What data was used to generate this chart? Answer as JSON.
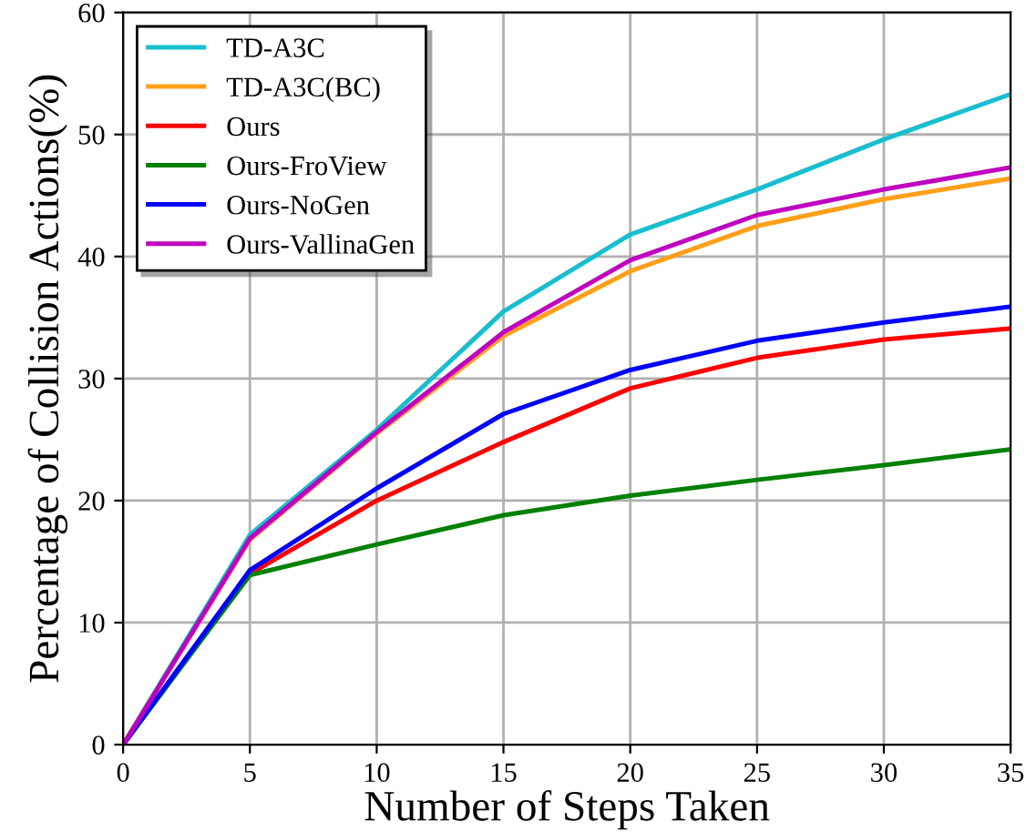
{
  "chart_data": {
    "type": "line",
    "xlabel": "Number of Steps Taken",
    "ylabel": "Percentage of Collision Actions(%)",
    "x": [
      0,
      5,
      10,
      15,
      20,
      25,
      30,
      35
    ],
    "series": [
      {
        "name": "TD-A3C",
        "color": "#17becf",
        "values": [
          0,
          17.2,
          25.8,
          35.5,
          41.8,
          45.5,
          49.6,
          53.3
        ]
      },
      {
        "name": "TD-A3C(BC)",
        "color": "#ff9f1a",
        "values": [
          0,
          16.8,
          25.5,
          33.5,
          38.8,
          42.5,
          44.7,
          46.4
        ]
      },
      {
        "name": "Ours",
        "color": "#ff0000",
        "values": [
          0,
          14.0,
          20.0,
          24.8,
          29.2,
          31.7,
          33.2,
          34.1
        ]
      },
      {
        "name": "Ours-FroView",
        "color": "#008000",
        "values": [
          0,
          13.9,
          16.4,
          18.8,
          20.4,
          21.7,
          22.9,
          24.2
        ]
      },
      {
        "name": "Ours-NoGen",
        "color": "#0000ff",
        "values": [
          0,
          14.3,
          21.0,
          27.1,
          30.7,
          33.1,
          34.6,
          35.9
        ]
      },
      {
        "name": "Ours-VallinaGen",
        "color": "#c000c0",
        "values": [
          0,
          16.9,
          25.6,
          33.8,
          39.7,
          43.4,
          45.5,
          47.3
        ]
      }
    ],
    "xlim": [
      0,
      35
    ],
    "xticks": [
      0,
      5,
      10,
      15,
      20,
      25,
      30,
      35
    ],
    "ylim": [
      0,
      60
    ],
    "yticks": [
      0,
      10,
      20,
      30,
      40,
      50,
      60
    ],
    "grid": true,
    "legend": "top left",
    "marker": "none",
    "line_style": "solid"
  }
}
